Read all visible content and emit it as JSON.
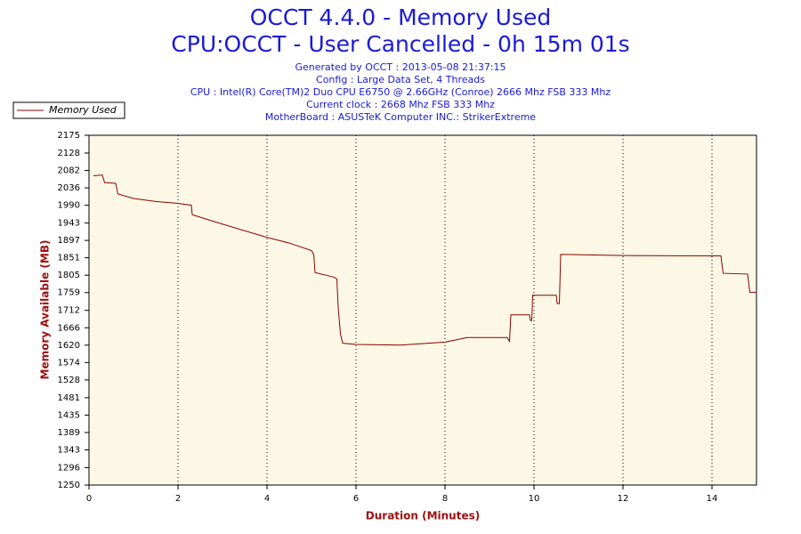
{
  "chart_data": {
    "type": "line",
    "title": "OCCT 4.4.0 - Memory Used",
    "subtitle": "CPU:OCCT - User Cancelled - 0h 15m 01s",
    "info": [
      "Generated by OCCT : 2013-05-08 21:37:15",
      "Config : Large Data Set, 4 Threads",
      "CPU : Intel(R) Core(TM)2 Duo CPU E6750 @ 2.66GHz (Conroe) 2666 Mhz FSB 333 Mhz",
      "Current clock : 2668 Mhz FSB 333 Mhz",
      "MotherBoard : ASUSTeK Computer INC.: StrikerExtreme"
    ],
    "x_label": "Duration (Minutes)",
    "y_label": "Memory Available (MB)",
    "x": [
      0.1,
      0.3,
      0.35,
      0.6,
      0.65,
      1.0,
      1.5,
      2.0,
      2.3,
      2.32,
      3.0,
      4.0,
      4.5,
      5.0,
      5.05,
      5.08,
      5.5,
      5.57,
      5.6,
      5.65,
      5.7,
      6.0,
      7.0,
      8.0,
      8.5,
      9.4,
      9.45,
      9.48,
      9.9,
      9.92,
      9.95,
      9.97,
      10.5,
      10.52,
      10.57,
      10.6,
      12.0,
      14.2,
      14.25,
      14.8,
      14.85,
      15.0
    ],
    "series": [
      {
        "name": "Memory Used",
        "color": "#8b0000",
        "values": [
          2068,
          2070,
          2050,
          2048,
          2020,
          2008,
          2000,
          1995,
          1990,
          1965,
          1940,
          1905,
          1890,
          1870,
          1860,
          1812,
          1800,
          1795,
          1720,
          1650,
          1625,
          1622,
          1620,
          1628,
          1640,
          1640,
          1630,
          1700,
          1700,
          1685,
          1685,
          1752,
          1752,
          1730,
          1730,
          1860,
          1857,
          1856,
          1810,
          1808,
          1760,
          1760
        ]
      }
    ],
    "xlim": [
      0,
      15
    ],
    "xticks": [
      0,
      2,
      4,
      6,
      8,
      10,
      12,
      14
    ],
    "ylim": [
      1250,
      2175
    ],
    "yticks": [
      1250,
      1296,
      1343,
      1389,
      1435,
      1481,
      1528,
      1574,
      1620,
      1666,
      1712,
      1759,
      1805,
      1851,
      1897,
      1943,
      1990,
      2036,
      2082,
      2128,
      2175
    ],
    "grid": "x",
    "legend": "top-left"
  }
}
